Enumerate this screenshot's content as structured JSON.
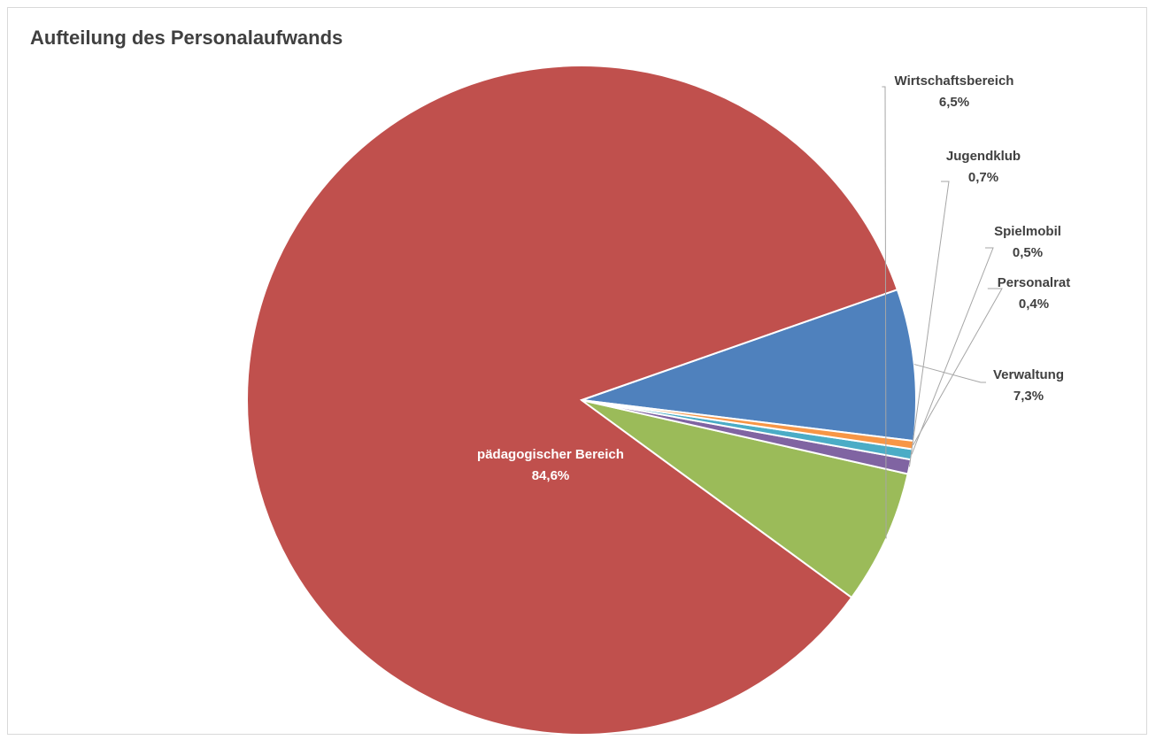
{
  "chart_data": {
    "type": "pie",
    "title": "Aufteilung des Personalaufwands",
    "slices": [
      {
        "label": "Verwaltung",
        "value": 7.3,
        "value_text": "7,3%",
        "color": "#4f81bd"
      },
      {
        "label": "pädagogischer Bereich",
        "value": 84.6,
        "value_text": "84,6%",
        "color": "#c0504d"
      },
      {
        "label": "Wirtschaftsbereich",
        "value": 6.5,
        "value_text": "6,5%",
        "color": "#9bbb59"
      },
      {
        "label": "Jugendklub",
        "value": 0.7,
        "value_text": "0,7%",
        "color": "#8064a2"
      },
      {
        "label": "Spielmobil",
        "value": 0.5,
        "value_text": "0,5%",
        "color": "#4bacc6"
      },
      {
        "label": "Personalrat",
        "value": 0.4,
        "value_text": "0,4%",
        "color": "#f79646"
      }
    ],
    "legend": "none",
    "data_labels": "on"
  }
}
